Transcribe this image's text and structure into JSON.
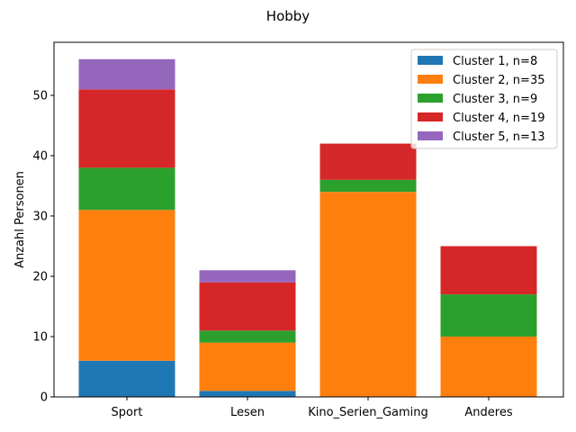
{
  "chart_data": {
    "type": "bar",
    "stacked": true,
    "title": "Hobby",
    "xlabel": "",
    "ylabel": "Anzahl Personen",
    "categories": [
      "Sport",
      "Lesen",
      "Kino_Serien_Gaming",
      "Anderes"
    ],
    "ylim": [
      0,
      58.8
    ],
    "yticks": [
      0,
      10,
      20,
      30,
      40,
      50
    ],
    "grid": false,
    "legend_position": "top-right",
    "series": [
      {
        "name": "Cluster 1, n=8",
        "color": "#1f77b4",
        "values": [
          6,
          1,
          0,
          0
        ]
      },
      {
        "name": "Cluster 2, n=35",
        "color": "#ff7f0e",
        "values": [
          25,
          8,
          34,
          10
        ]
      },
      {
        "name": "Cluster 3, n=9",
        "color": "#2ca02c",
        "values": [
          7,
          2,
          2,
          7
        ]
      },
      {
        "name": "Cluster 4, n=19",
        "color": "#d62728",
        "values": [
          13,
          8,
          6,
          8
        ]
      },
      {
        "name": "Cluster 5, n=13",
        "color": "#9467bd",
        "values": [
          5,
          2,
          0,
          0
        ]
      }
    ]
  }
}
